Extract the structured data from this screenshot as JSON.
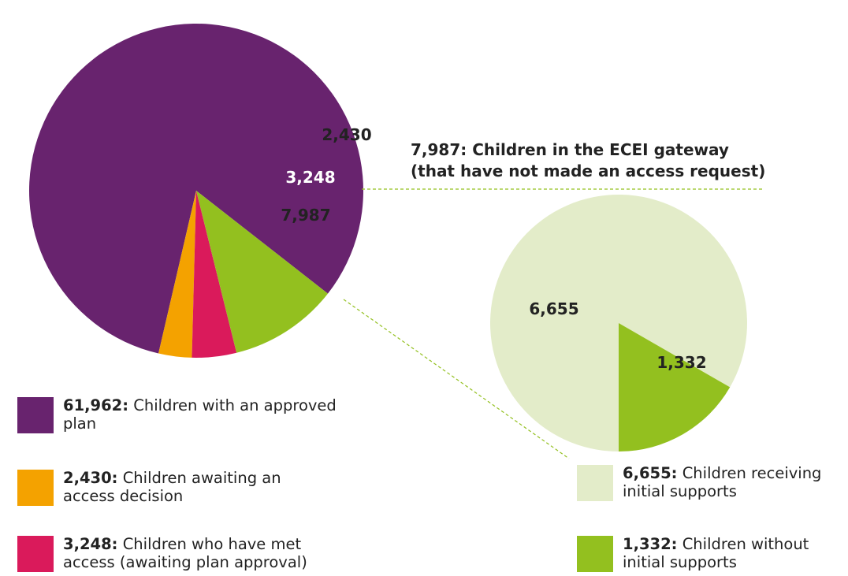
{
  "colors": {
    "purple": "#68236e",
    "orange": "#f4a200",
    "pink": "#da1a5b",
    "green": "#93c01f",
    "light_green": "#e3ecc9"
  },
  "callout": {
    "line1": "7,987: Children in the ECEI gateway",
    "line2": "(that have not made an access request)"
  },
  "chart_data": [
    {
      "type": "pie",
      "series": [
        {
          "name": "Children with an approved plan",
          "value": 61962,
          "label": "",
          "color": "#68236e"
        },
        {
          "name": "Children awaiting an access decision",
          "value": 2430,
          "label": "2,430",
          "color": "#f4a200"
        },
        {
          "name": "Children who have met access (awaiting plan approval)",
          "value": 3248,
          "label": "3,248",
          "color": "#da1a5b"
        },
        {
          "name": "Children in the ECEI gateway",
          "value": 7987,
          "label": "7,987",
          "color": "#93c01f"
        }
      ]
    },
    {
      "type": "pie",
      "series": [
        {
          "name": "Children receiving initial supports",
          "value": 6655,
          "label": "6,655",
          "color": "#e3ecc9"
        },
        {
          "name": "Children without initial supports",
          "value": 1332,
          "label": "1,332",
          "color": "#93c01f"
        }
      ]
    }
  ],
  "legend_left": [
    {
      "value": "61,962:",
      "text": "Children with an approved plan",
      "color": "#68236e"
    },
    {
      "value": "2,430:",
      "text": "Children awaiting an access decision",
      "color": "#f4a200"
    },
    {
      "value": "3,248:",
      "text": "Children who have met access (awaiting plan approval)",
      "color": "#da1a5b"
    }
  ],
  "legend_right": [
    {
      "value": "6,655:",
      "text": "Children receiving initial supports",
      "color": "#e3ecc9"
    },
    {
      "value": "1,332:",
      "text": "Children without initial supports",
      "color": "#93c01f"
    }
  ]
}
